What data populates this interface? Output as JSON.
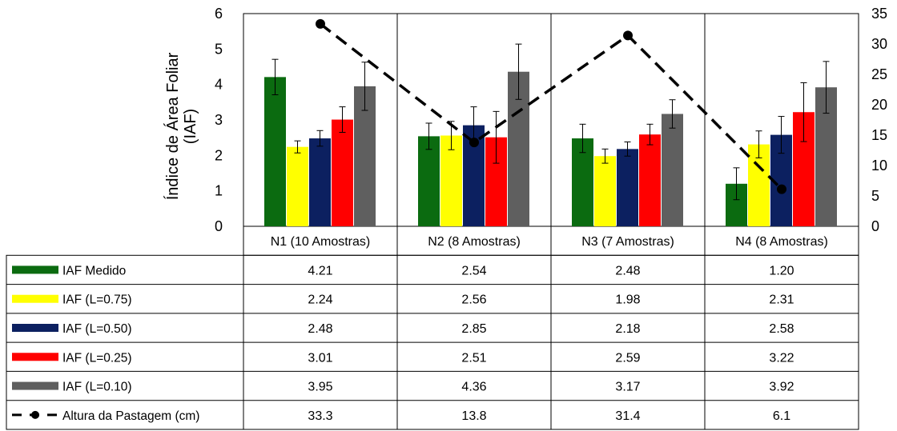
{
  "chart_data": {
    "type": "bar",
    "categories": [
      "N1 (10 Amostras)",
      "N2 (8 Amostras)",
      "N3 (7 Amostras)",
      "N4 (8 Amostras)"
    ],
    "ylabel_lines": [
      "Índice de Área Foliar",
      "(IAF)"
    ],
    "ylim": [
      0,
      6
    ],
    "yticks": [
      "0",
      "1",
      "2",
      "3",
      "4",
      "5",
      "6"
    ],
    "y2lim": [
      0,
      35
    ],
    "y2ticks": [
      "0",
      "5",
      "10",
      "15",
      "20",
      "25",
      "30",
      "35"
    ],
    "series": [
      {
        "name": "IAF Medido",
        "color": "#0b6b10",
        "values": [
          4.21,
          2.54,
          2.48,
          1.2
        ],
        "errors": [
          0.5,
          0.37,
          0.4,
          0.45
        ],
        "labels": [
          "4.21",
          "2.54",
          "2.48",
          "1.20"
        ]
      },
      {
        "name": "IAF (L=0.75)",
        "color": "#ffff00",
        "values": [
          2.24,
          2.56,
          1.98,
          2.31
        ],
        "errors": [
          0.17,
          0.4,
          0.2,
          0.38
        ],
        "labels": [
          "2.24",
          "2.56",
          "1.98",
          "2.31"
        ]
      },
      {
        "name": "IAF (L=0.50)",
        "color": "#0c2060",
        "values": [
          2.48,
          2.85,
          2.18,
          2.58
        ],
        "errors": [
          0.22,
          0.52,
          0.2,
          0.52
        ],
        "labels": [
          "2.48",
          "2.85",
          "2.18",
          "2.58"
        ]
      },
      {
        "name": "IAF (L=0.25)",
        "color": "#ff0000",
        "values": [
          3.01,
          2.51,
          2.59,
          3.22
        ],
        "errors": [
          0.36,
          0.73,
          0.29,
          0.83
        ],
        "labels": [
          "3.01",
          "2.51",
          "2.59",
          "3.22"
        ]
      },
      {
        "name": "IAF (L=0.10)",
        "color": "#5f5f5f",
        "values": [
          3.95,
          4.36,
          3.17,
          3.92
        ],
        "errors": [
          0.68,
          0.78,
          0.4,
          0.73
        ],
        "labels": [
          "3.95",
          "4.36",
          "3.17",
          "3.92"
        ]
      }
    ],
    "line_series": {
      "name": "Altura da Pastagem (cm)",
      "color": "#000000",
      "axis": "right",
      "values": [
        33.3,
        13.8,
        31.4,
        6.1
      ],
      "labels": [
        "33.3",
        "13.8",
        "31.4",
        "6.1"
      ]
    },
    "grid": false,
    "legend": "data-table"
  }
}
